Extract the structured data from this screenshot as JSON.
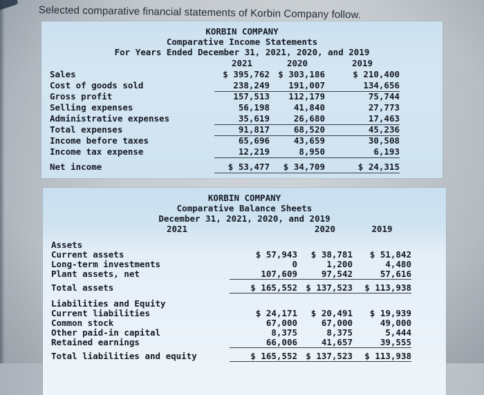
{
  "intro": {
    "text": "Selected comparative financial statements of Korbin Company follow."
  },
  "income_statement": {
    "company": "KORBIN COMPANY",
    "title": "Comparative Income Statements",
    "period": "For Years Ended December 31, 2021, 2020, and 2019",
    "columns": [
      "2021",
      "2020",
      "2019"
    ],
    "rows": [
      {
        "label": "Sales",
        "v1": "$ 395,762",
        "v2": "$ 303,186",
        "v3": "$ 210,400"
      },
      {
        "label": "Cost of goods sold",
        "v1": "238,249",
        "v2": "191,007",
        "v3": "134,656"
      },
      {
        "label": "Gross profit",
        "v1": "157,513",
        "v2": "112,179",
        "v3": "75,744"
      },
      {
        "label": "Selling expenses",
        "v1": "56,198",
        "v2": "41,840",
        "v3": "27,773"
      },
      {
        "label": "Administrative expenses",
        "v1": "35,619",
        "v2": "26,680",
        "v3": "17,463"
      },
      {
        "label": "Total expenses",
        "v1": "91,817",
        "v2": "68,520",
        "v3": "45,236"
      },
      {
        "label": "Income before taxes",
        "v1": "65,696",
        "v2": "43,659",
        "v3": "30,508"
      },
      {
        "label": "Income tax expense",
        "v1": "12,219",
        "v2": "8,950",
        "v3": "6,193"
      },
      {
        "label": "Net income",
        "v1": "$ 53,477",
        "v2": "$ 34,709",
        "v3": "$ 24,315"
      }
    ]
  },
  "balance_sheet": {
    "company": "KORBIN COMPANY",
    "title": "Comparative Balance Sheets",
    "period": "December 31, 2021, 2020, and 2019",
    "columns": [
      "2021",
      "2020",
      "2019"
    ],
    "sections": [
      {
        "heading": "Assets",
        "rows": [
          {
            "label": "Current assets",
            "v1": "$ 57,943",
            "v2": "$ 38,781",
            "v3": "$ 51,842"
          },
          {
            "label": "Long-term investments",
            "v1": "0",
            "v2": "1,200",
            "v3": "4,480"
          },
          {
            "label": "Plant assets, net",
            "v1": "107,609",
            "v2": "97,542",
            "v3": "57,616"
          }
        ],
        "total": {
          "label": "Total assets",
          "v1": "$ 165,552",
          "v2": "$ 137,523",
          "v3": "$ 113,938"
        }
      },
      {
        "heading": "Liabilities and Equity",
        "rows": [
          {
            "label": "Current liabilities",
            "v1": "$ 24,171",
            "v2": "$ 20,491",
            "v3": "$ 19,939"
          },
          {
            "label": "Common stock",
            "v1": "67,000",
            "v2": "67,000",
            "v3": "49,000"
          },
          {
            "label": "Other paid-in capital",
            "v1": "8,375",
            "v2": "8,375",
            "v3": "5,444"
          },
          {
            "label": "Retained earnings",
            "v1": "66,006",
            "v2": "41,657",
            "v3": "39,555"
          }
        ],
        "total": {
          "label": "Total liabilities and equity",
          "v1": "$ 165,552",
          "v2": "$ 137,523",
          "v3": "$ 113,938"
        }
      }
    ]
  }
}
